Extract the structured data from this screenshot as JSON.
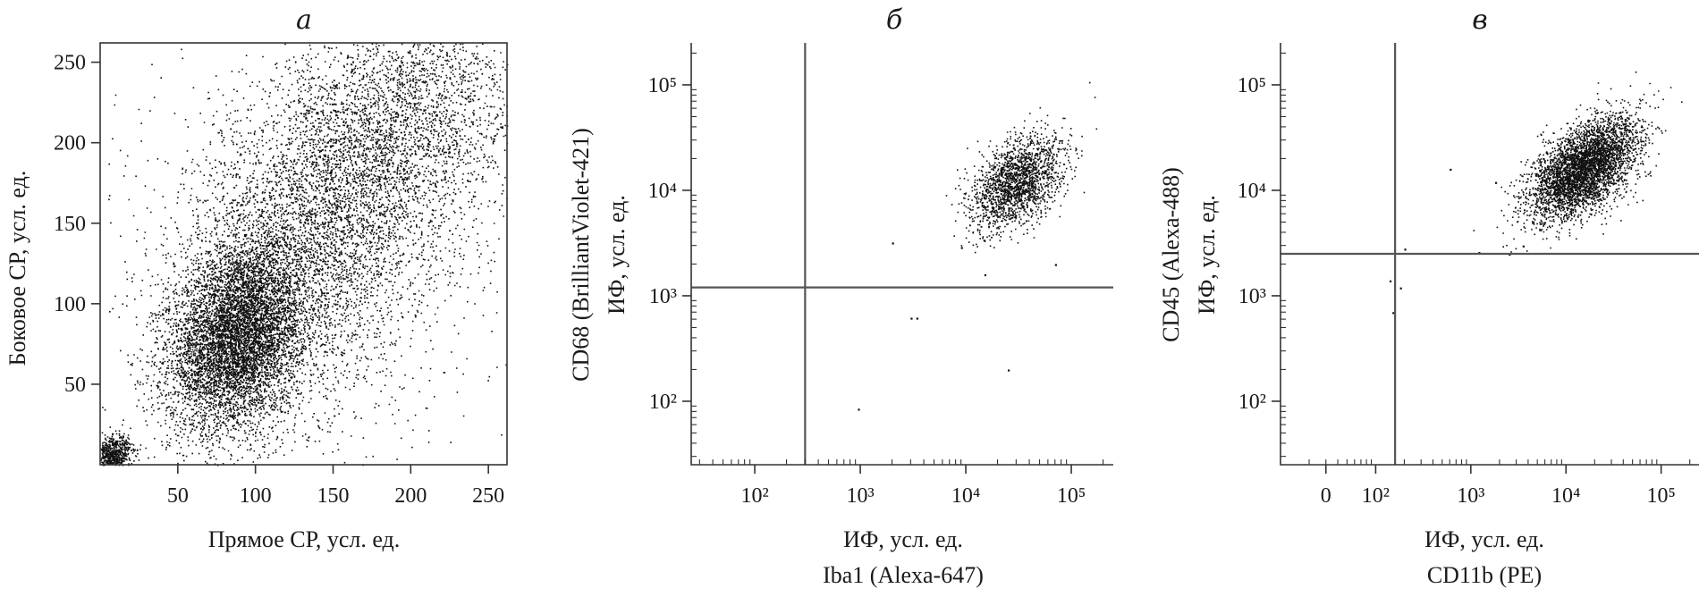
{
  "chart_data": [
    {
      "type": "scatter",
      "panel_label": "а",
      "xlabel": "Прямое СР, усл. ед.",
      "ylabel": "Боковое СР, усл. ед.",
      "xlim": [
        0,
        262
      ],
      "ylim": [
        0,
        262
      ],
      "xticks": [
        50,
        100,
        150,
        200,
        250
      ],
      "yticks": [
        50,
        100,
        150,
        200,
        250
      ],
      "x_scale": "linear",
      "y_scale": "linear",
      "clusters": [
        {
          "center": [
            88,
            80
          ],
          "spread": [
            22,
            28
          ],
          "count": 6500
        },
        {
          "center": [
            140,
            140
          ],
          "spread": [
            45,
            50
          ],
          "count": 4200
        },
        {
          "center": [
            190,
            210
          ],
          "spread": [
            45,
            35
          ],
          "count": 2600
        },
        {
          "center": [
            8,
            6
          ],
          "spread": [
            6,
            6
          ],
          "count": 700
        },
        {
          "center": [
            130,
            130
          ],
          "spread": [
            90,
            90
          ],
          "count": 700
        }
      ]
    },
    {
      "type": "scatter",
      "panel_label": "б",
      "xlabel": [
        "ИФ, усл. ед.",
        "Iba1 (Alexa-647)"
      ],
      "ylabel": [
        "CD68 (BrilliantViolet-421)",
        "ИФ, усл. ед."
      ],
      "x_scale": "log",
      "y_scale": "log",
      "xlim": [
        25,
        250000
      ],
      "ylim": [
        25,
        250000
      ],
      "xticks": [
        100,
        1000,
        10000,
        100000
      ],
      "yticks": [
        100,
        1000,
        10000,
        100000
      ],
      "x_tick_labels": [
        "10²",
        "10³",
        "10⁴",
        "10⁵"
      ],
      "y_tick_labels": [
        "10²",
        "10³",
        "10⁴",
        "10⁵"
      ],
      "gate_x": 300,
      "gate_y": 1200,
      "clusters": [
        {
          "center": [
            30000,
            12000
          ],
          "log_spread": [
            0.22,
            0.2
          ],
          "count": 1900
        }
      ],
      "outliers": [
        [
          950,
          85
        ],
        [
          3000,
          620
        ],
        [
          3400,
          620
        ],
        [
          25000,
          200
        ],
        [
          2000,
          3200
        ],
        [
          15000,
          1600
        ],
        [
          70000,
          2000
        ],
        [
          9000,
          2900
        ]
      ]
    },
    {
      "type": "scatter",
      "panel_label": "в",
      "xlabel": [
        "ИФ, усл. ед.",
        "CD11b (PE)"
      ],
      "ylabel": [
        "CD45 (Alexa-488)",
        "ИФ, усл. ед."
      ],
      "x_scale": "log",
      "y_scale": "log",
      "xlim": [
        10,
        250000
      ],
      "ylim": [
        25,
        250000
      ],
      "xticks": [
        30,
        100,
        1000,
        10000,
        100000
      ],
      "yticks": [
        100,
        1000,
        10000,
        100000
      ],
      "x_tick_labels": [
        "0",
        "10²",
        "10³",
        "10⁴",
        "10⁵"
      ],
      "y_tick_labels": [
        "10²",
        "10³",
        "10⁴",
        "10⁵"
      ],
      "gate_x": 160,
      "gate_y": 2500,
      "clusters": [
        {
          "center": [
            15000,
            16000
          ],
          "log_spread": [
            0.28,
            0.2
          ],
          "count": 4200
        }
      ],
      "outliers": [
        [
          140,
          1400
        ],
        [
          150,
          700
        ],
        [
          180,
          1200
        ],
        [
          200,
          2800
        ],
        [
          600,
          16000
        ],
        [
          1200,
          2600
        ],
        [
          2500,
          2500
        ],
        [
          3500,
          3000
        ],
        [
          1800,
          12000
        ]
      ]
    }
  ]
}
